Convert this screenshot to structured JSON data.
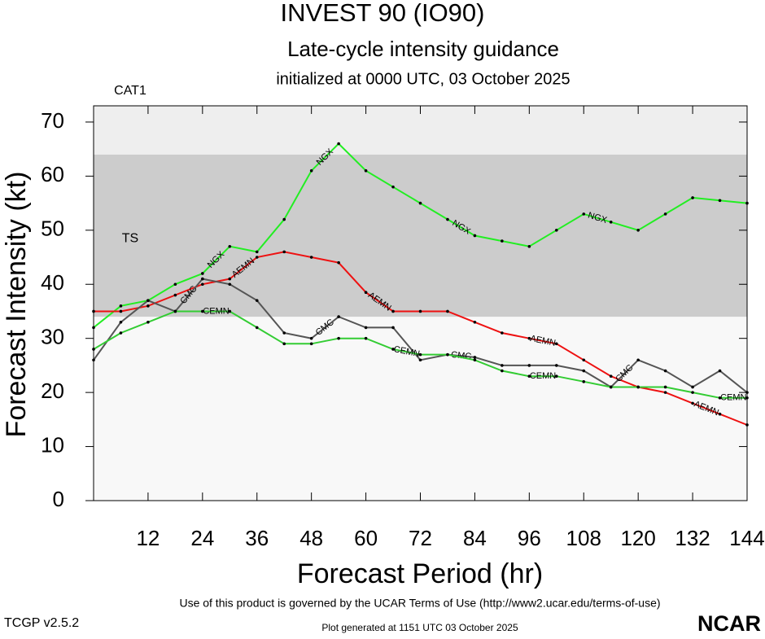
{
  "chart_data": {
    "type": "line",
    "title": "INVEST 90 (IO90)",
    "subtitle": "Late-cycle intensity guidance",
    "subtitle2": "initialized at 0000 UTC, 03 October 2025",
    "x_label": "Forecast Period (hr)",
    "y_label": "Forecast Intensity (kt)",
    "footer": "Use of this product is governed by the UCAR Terms of Use (http://www2.ucar.edu/terms-of-use)",
    "version": "TCGP v2.5.2",
    "generated": "Plot generated at 1151 UTC   03 October 2025",
    "logo": "NCAR",
    "xlim": [
      0,
      144
    ],
    "ylim": [
      0,
      73
    ],
    "xticks": [
      12,
      24,
      36,
      48,
      60,
      72,
      84,
      96,
      108,
      120,
      132,
      144
    ],
    "yticks": [
      0,
      10,
      20,
      30,
      40,
      50,
      60,
      70
    ],
    "bands": [
      {
        "label": "TS",
        "from": 34,
        "to": 64,
        "color": "#cccccc"
      },
      {
        "label": "CAT1",
        "from": 64,
        "to": 73,
        "color": "#eeeeee"
      }
    ],
    "x": [
      0,
      6,
      12,
      18,
      24,
      30,
      36,
      42,
      48,
      54,
      60,
      66,
      72,
      78,
      84,
      90,
      96,
      102,
      108,
      114,
      120,
      126,
      132,
      138,
      144
    ],
    "series": [
      {
        "name": "NGX",
        "color": "#22ee22",
        "values": [
          32,
          36,
          37,
          40,
          42,
          47,
          46,
          52,
          61,
          66,
          61,
          58,
          55,
          52,
          49,
          48,
          47,
          50,
          53,
          51.5,
          50,
          53,
          56,
          55.5,
          55
        ]
      },
      {
        "name": "AEMN",
        "color": "#ee1111",
        "values": [
          35,
          35,
          36,
          38,
          40,
          41,
          45,
          46,
          45,
          44,
          38.5,
          35,
          35,
          35,
          33,
          31,
          30,
          29,
          26,
          23,
          21,
          20,
          18,
          16,
          14
        ]
      },
      {
        "name": "CMC",
        "color": "#555555",
        "values": [
          26,
          33,
          37,
          35,
          41,
          40,
          37,
          31,
          30,
          34,
          32,
          32,
          26,
          27,
          26.5,
          25,
          25,
          25,
          24,
          21,
          26,
          24,
          21,
          24,
          20
        ]
      },
      {
        "name": "CEMN",
        "color": "#33cc33",
        "values": [
          28,
          31,
          33,
          35,
          35,
          35,
          32,
          29,
          29,
          30,
          30,
          28,
          27,
          27,
          26,
          24,
          23,
          23,
          22,
          21,
          21,
          21,
          20,
          19,
          19
        ]
      }
    ]
  }
}
